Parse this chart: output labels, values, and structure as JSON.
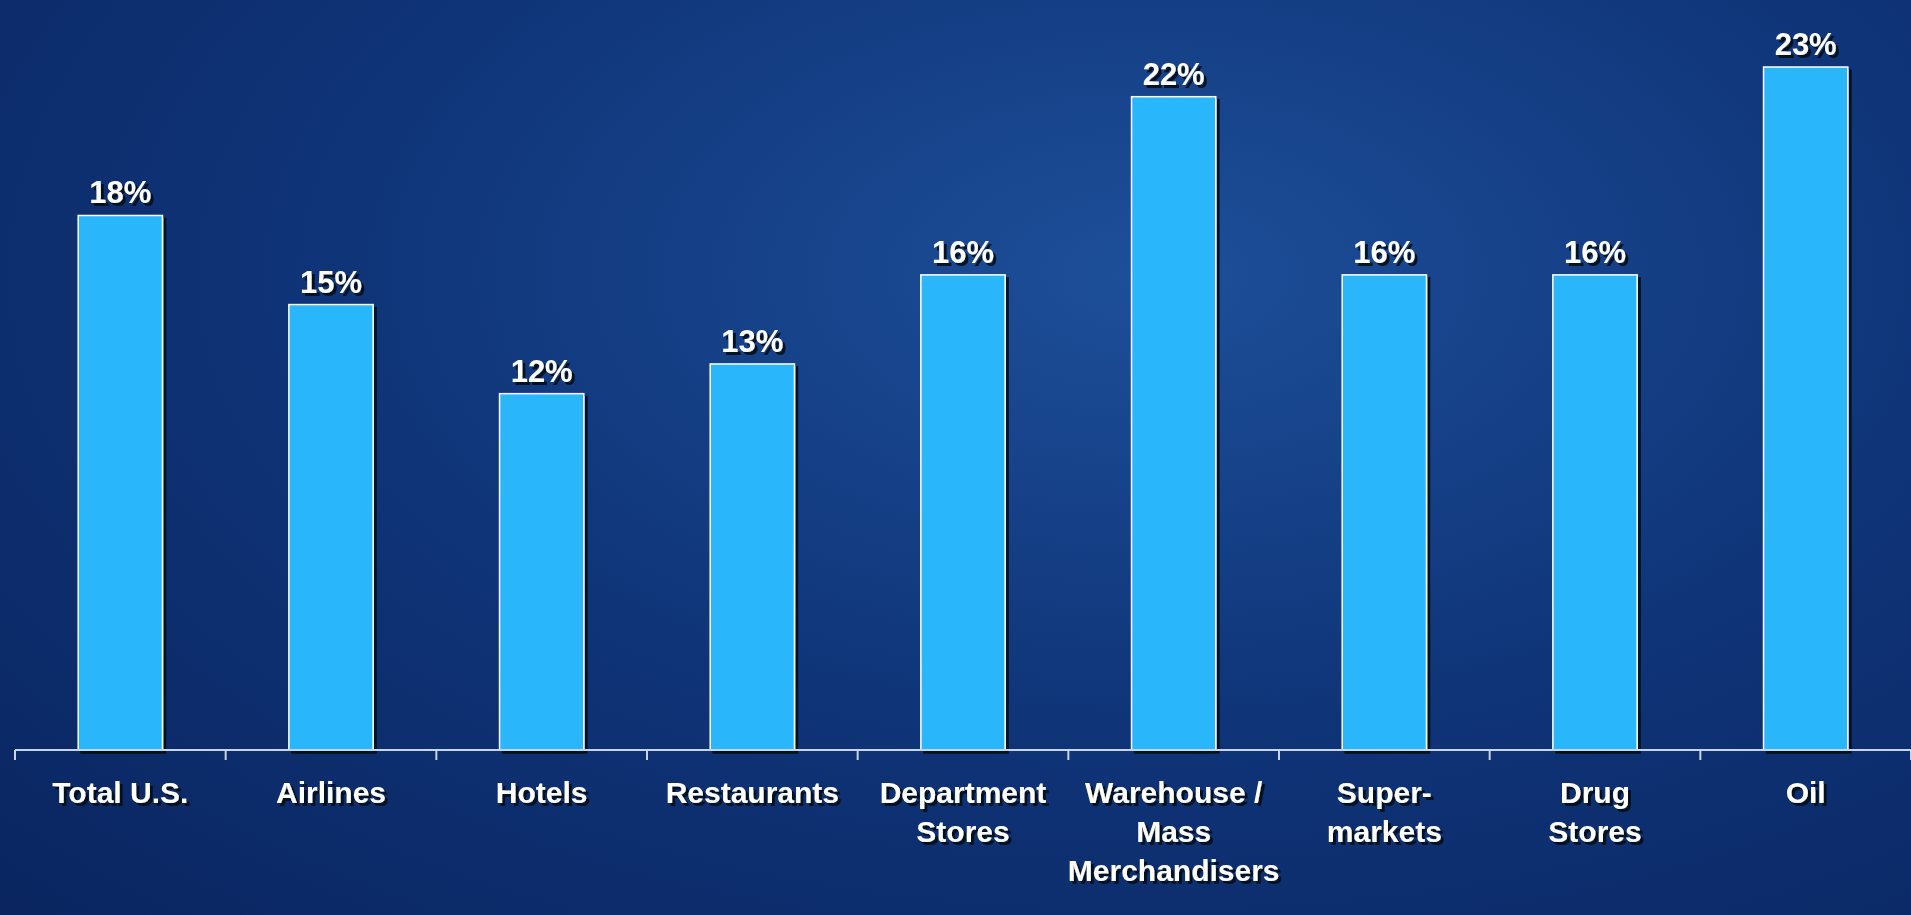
{
  "chart_data": {
    "type": "bar",
    "categories": [
      "Total U.S.",
      "Airlines",
      "Hotels",
      "Restaurants",
      "Department\nStores",
      "Warehouse /\nMass\nMerchandisers",
      "Super-\nmarkets",
      "Drug\nStores",
      "Oil"
    ],
    "values": [
      18,
      15,
      12,
      13,
      16,
      22,
      16,
      16,
      23
    ],
    "value_labels": [
      "18%",
      "15%",
      "12%",
      "13%",
      "16%",
      "22%",
      "16%",
      "16%",
      "23%"
    ],
    "color": "#29b6fb"
  }
}
